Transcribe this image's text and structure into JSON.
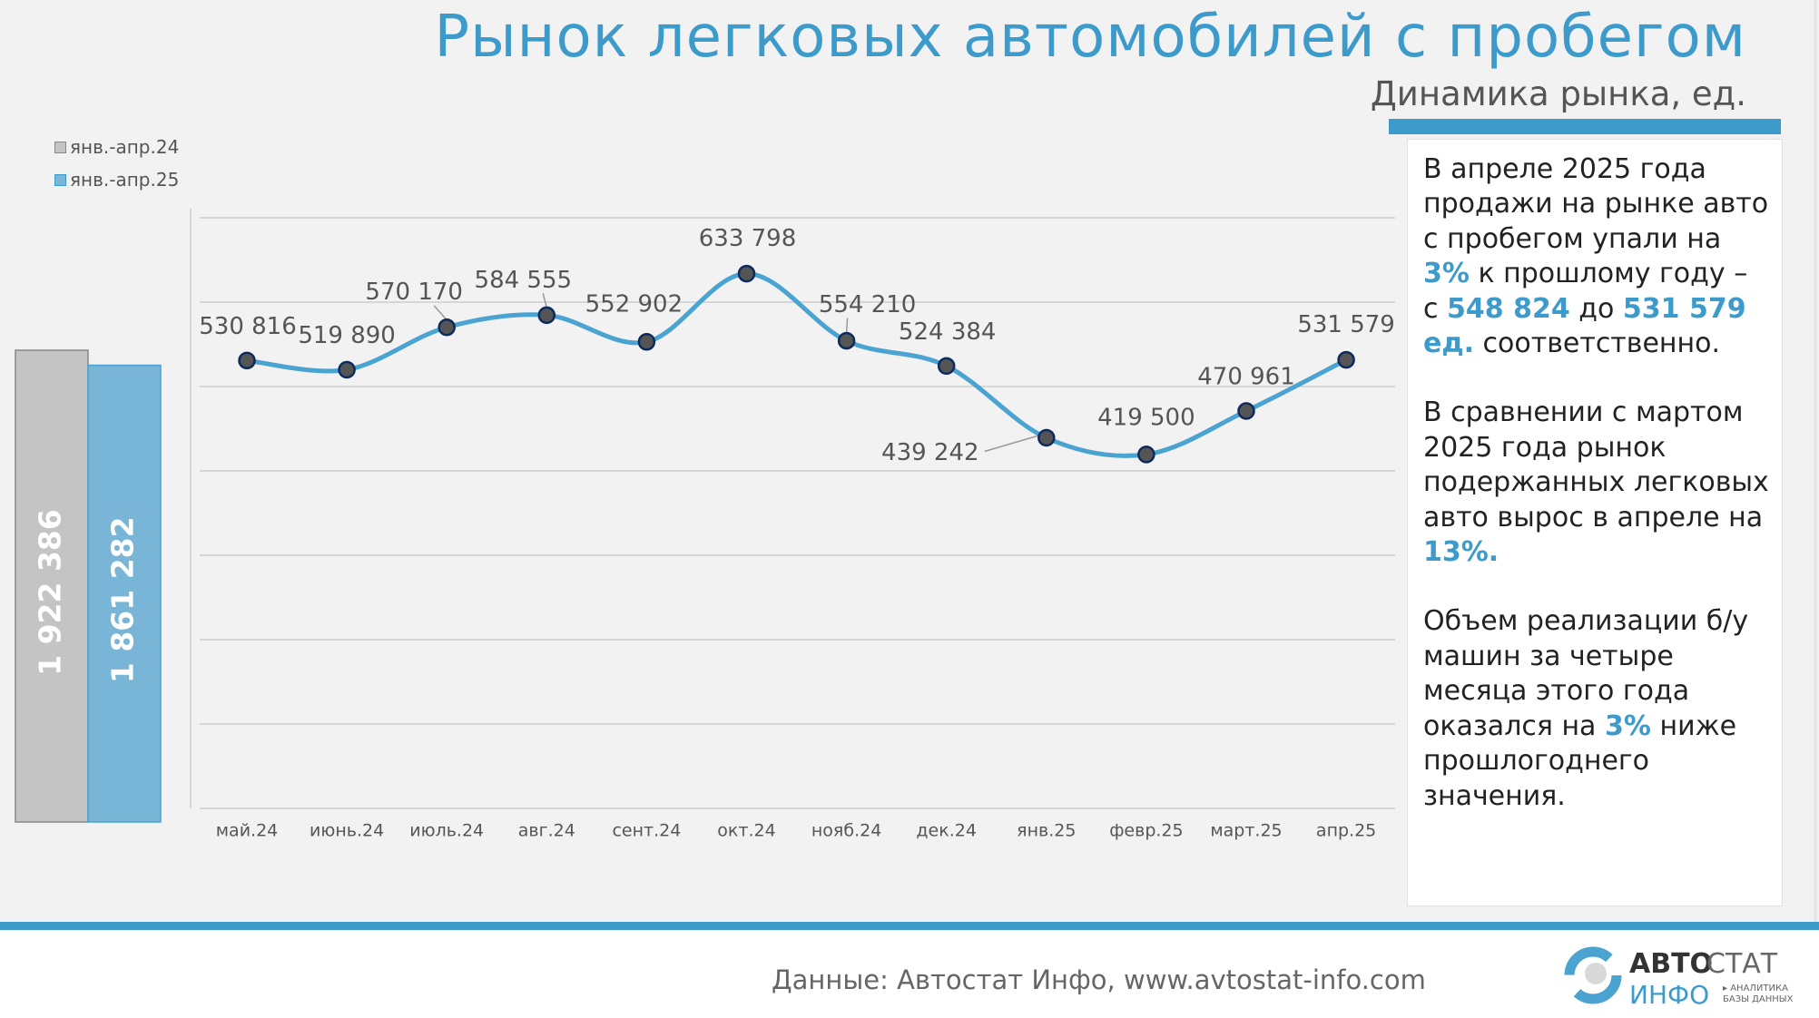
{
  "title": "Рынок легковых автомобилей с пробегом",
  "subtitle": "Динамика рынка, ед.",
  "colors": {
    "accent": "#3d9bcb",
    "line": "#4aa3d1",
    "marker": "#555555",
    "bar24": "#c4c4c4",
    "bar25": "#78b5d6"
  },
  "chart_data": [
    {
      "type": "bar",
      "title": "",
      "categories": [
        "янв.-апр.24",
        "янв.-апр.25"
      ],
      "values": [
        1922386,
        1861282
      ],
      "labels": [
        "1 922 386",
        "1 861 282"
      ],
      "legend": [
        "янв.-апр.24",
        "янв.-апр.25"
      ],
      "legend_position": "top-left"
    },
    {
      "type": "line",
      "title": "Динамика рынка, ед.",
      "categories": [
        "май.24",
        "июнь.24",
        "июль.24",
        "авг.24",
        "сент.24",
        "окт.24",
        "нояб.24",
        "дек.24",
        "янв.25",
        "февр.25",
        "март.25",
        "апр.25"
      ],
      "values": [
        530816,
        519890,
        570170,
        584555,
        552902,
        633798,
        554210,
        524384,
        439242,
        419500,
        470961,
        531579
      ],
      "labels": [
        "530 816",
        "519 890",
        "570 170",
        "584 555",
        "552 902",
        "633 798",
        "554 210",
        "524 384",
        "439 242",
        "419 500",
        "470 961",
        "531 579"
      ],
      "ylim": [
        0,
        700000
      ],
      "grid": true
    }
  ],
  "textbox": [
    [
      {
        "t": "В апреле 2025 года продажи на рынке авто с пробегом упали на "
      },
      {
        "t": "3%",
        "hl": true
      },
      {
        "t": " к прошлому году – с "
      },
      {
        "t": "548 824",
        "hl": true
      },
      {
        "t": " до "
      },
      {
        "t": "531 579 ед.",
        "hl": true
      },
      {
        "t": " соответственно."
      }
    ],
    [
      {
        "t": "В сравнении с мартом 2025 года рынок подержанных легковых авто вырос в апреле на "
      },
      {
        "t": "13%.",
        "hl": true
      }
    ],
    [
      {
        "t": "Объем реализации б/у машин за четыре месяца этого года оказался на "
      },
      {
        "t": "3%",
        "hl": true
      },
      {
        "t": " ниже прошлогоднего значения."
      }
    ]
  ],
  "footer": {
    "source": "Данные: Автостат Инфо, www.avtostat-info.com"
  },
  "logo": {
    "line1a": "АВТО",
    "line1b": "СТАТ",
    "line2": "ИНФО",
    "tag1": "▸ АНАЛИТИКА",
    "tag2": "БАЗЫ ДАННЫХ"
  }
}
